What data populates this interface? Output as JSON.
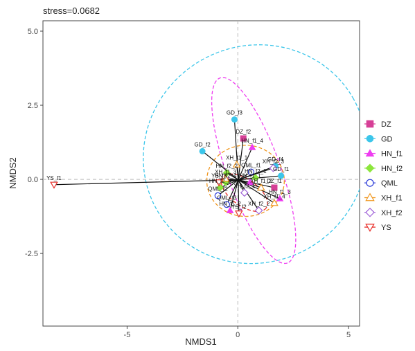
{
  "chart_data": {
    "type": "scatter",
    "title": "stress=0.0682",
    "xlabel": "NMDS1",
    "ylabel": "NMDS2",
    "xlim": [
      -8.8,
      5.5
    ],
    "ylim": [
      -4.95,
      5.35
    ],
    "xticks": [
      -5,
      0,
      5
    ],
    "xtick_labels": [
      "-5",
      "0",
      "5"
    ],
    "yticks": [
      -2.5,
      0.0,
      2.5,
      5.0
    ],
    "ytick_labels": [
      "-2.5",
      "0.0",
      "2.5",
      "5.0"
    ],
    "grid": false,
    "zero_lines": true,
    "legend_position": "right",
    "series": [
      {
        "name": "DZ",
        "marker": "square",
        "color": "#d63f96",
        "points": [
          {
            "label": "DZ_f1",
            "x": 1.65,
            "y": -0.28
          },
          {
            "label": "DZ_f2",
            "x": 0.25,
            "y": 1.38
          }
        ]
      },
      {
        "name": "GD",
        "marker": "circle",
        "color": "#3cc6ea",
        "points": [
          {
            "label": "GD_f1",
            "x": 1.95,
            "y": 0.12
          },
          {
            "label": "GD_f2",
            "x": -1.6,
            "y": 0.95
          },
          {
            "label": "GD_f3",
            "x": -0.15,
            "y": 2.02
          },
          {
            "label": "GD_f4",
            "x": 1.7,
            "y": 0.45
          }
        ]
      },
      {
        "name": "HN_f1",
        "marker": "triangle",
        "color": "#ee3df0",
        "points": [
          {
            "label": "HN_f1_1",
            "x": 0.55,
            "y": -0.1
          },
          {
            "label": "HN_f1_2",
            "x": -0.35,
            "y": -1.05
          },
          {
            "label": "HN_f1_3",
            "x": 1.9,
            "y": -0.65
          },
          {
            "label": "HN_f1_4",
            "x": 0.65,
            "y": 1.08
          }
        ]
      },
      {
        "name": "HN_f2",
        "marker": "diamond",
        "color": "#8ce63c",
        "points": [
          {
            "label": "HN_f2_1",
            "x": 0.8,
            "y": 0.05
          },
          {
            "label": "HN_f2_2",
            "x": -0.5,
            "y": 0.22
          },
          {
            "label": "HN_f2_3",
            "x": -0.8,
            "y": -0.28
          },
          {
            "label": "HN_f2_4",
            "x": -0.55,
            "y": -0.1
          }
        ]
      },
      {
        "name": "QML",
        "marker": "circle-open",
        "color": "#2a3ad8",
        "points": [
          {
            "label": "QML_f1",
            "x": 0.6,
            "y": 0.25
          },
          {
            "label": "QML_f2",
            "x": -0.9,
            "y": -0.55
          },
          {
            "label": "QML_f3",
            "x": -0.5,
            "y": -0.85
          }
        ]
      },
      {
        "name": "XH_f1",
        "marker": "triangle-open",
        "color": "#f0961e",
        "points": [
          {
            "label": "XH_f1_1",
            "x": -0.05,
            "y": 0.5
          },
          {
            "label": "XH_f1_2",
            "x": 1.05,
            "y": -0.28
          },
          {
            "label": "XH_f1_3",
            "x": -0.55,
            "y": 0.02
          },
          {
            "label": "XH_f1_4",
            "x": 1.65,
            "y": -0.8
          }
        ]
      },
      {
        "name": "XH_f2",
        "marker": "diamond-open",
        "color": "#a063d8",
        "points": [
          {
            "label": "XH_f2_1",
            "x": 0.3,
            "y": -0.45
          },
          {
            "label": "XH_f2_2",
            "x": 0.95,
            "y": -1.05
          },
          {
            "label": "XH_f2_3",
            "x": 1.6,
            "y": 0.38
          }
        ]
      },
      {
        "name": "YS",
        "marker": "triangle-down-open",
        "color": "#e8302a",
        "points": [
          {
            "label": "YS_f1",
            "x": -8.3,
            "y": -0.18
          },
          {
            "label": "YS_f2",
            "x": 0.05,
            "y": -1.15
          },
          {
            "label": "YS_f3",
            "x": -0.85,
            "y": -0.1
          }
        ]
      }
    ],
    "ellipses": [
      {
        "group": "GD",
        "color": "#3cc6ea",
        "cx": 0.78,
        "cy": 0.85,
        "rx": 5.1,
        "ry": 3.65,
        "rotation_deg": -30
      },
      {
        "group": "HN_f1",
        "color": "#ee3df0",
        "cx": 0.72,
        "cy": 0.3,
        "rx": 4.45,
        "ry": 0.9,
        "rotation_deg": 70
      },
      {
        "group": "XH_f1",
        "color": "#f0961e",
        "cx": 0.35,
        "cy": -0.05,
        "rx": 1.75,
        "ry": 1.2,
        "rotation_deg": 0
      },
      {
        "group": "YS",
        "color": "#e8302a",
        "cx": 0.3,
        "cy": -0.45,
        "rx": 1.2,
        "ry": 0.45,
        "rotation_deg": 35
      }
    ]
  }
}
